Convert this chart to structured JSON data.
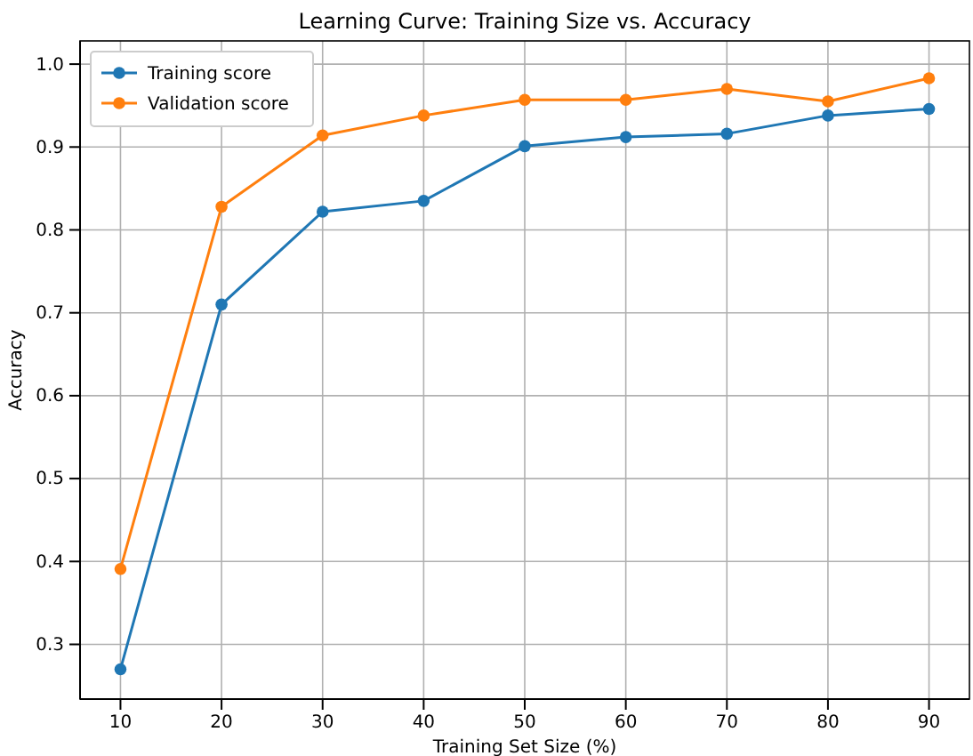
{
  "chart_data": {
    "type": "line",
    "title": "Learning Curve: Training Size vs. Accuracy",
    "xlabel": "Training Set Size (%)",
    "ylabel": "Accuracy",
    "x": [
      10,
      20,
      30,
      40,
      50,
      60,
      70,
      80,
      90
    ],
    "series": [
      {
        "name": "Training score",
        "color": "#1f77b4",
        "values": [
          0.27,
          0.71,
          0.822,
          0.835,
          0.901,
          0.912,
          0.916,
          0.938,
          0.946
        ]
      },
      {
        "name": "Validation score",
        "color": "#ff7f0e",
        "values": [
          0.391,
          0.828,
          0.914,
          0.938,
          0.957,
          0.957,
          0.97,
          0.955,
          0.983
        ]
      }
    ],
    "xlim": [
      6,
      94
    ],
    "ylim": [
      0.234,
      1.028
    ],
    "xticks": [
      10,
      20,
      30,
      40,
      50,
      60,
      70,
      80,
      90
    ],
    "yticks": [
      0.3,
      0.4,
      0.5,
      0.6,
      0.7,
      0.8,
      0.9,
      {
        "value": 1,
        "label": "1.0"
      }
    ],
    "grid": true,
    "legend": "top left",
    "marker": "circle",
    "line_style": "solid"
  }
}
